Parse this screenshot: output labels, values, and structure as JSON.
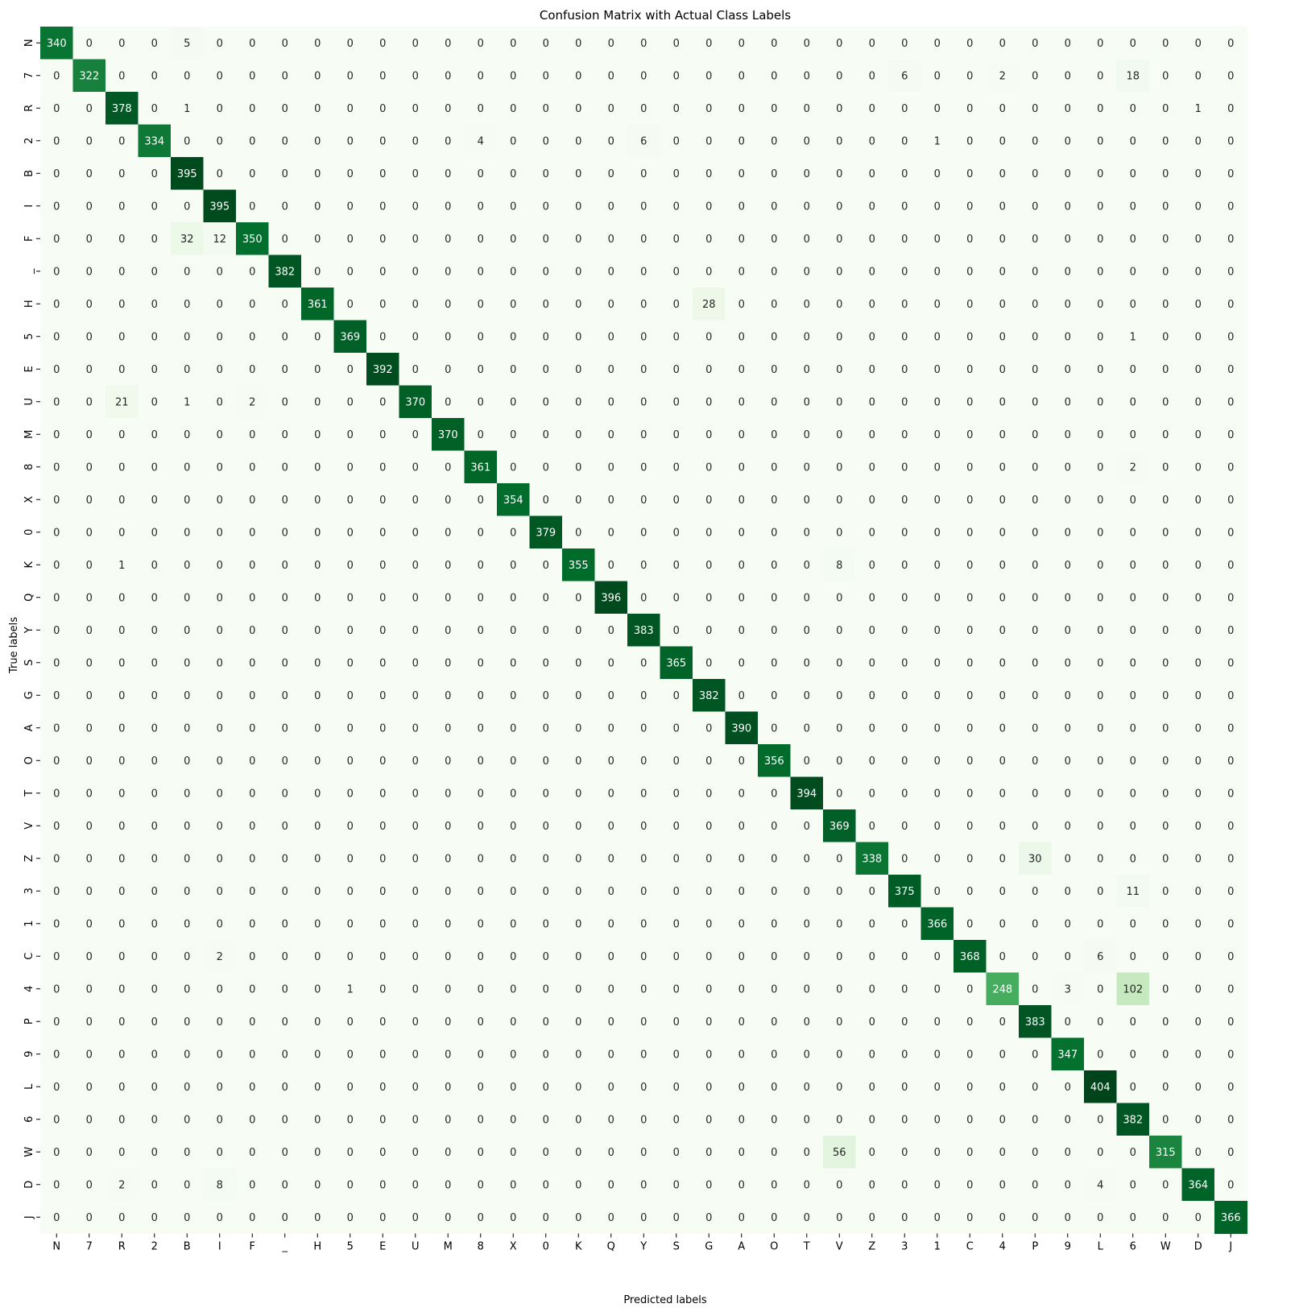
{
  "chart_data": {
    "type": "heatmap",
    "title": "Confusion Matrix with Actual Class Labels",
    "xlabel": "Predicted labels",
    "ylabel": "True labels",
    "x_categories": [
      "N",
      "7",
      "R",
      "2",
      "B",
      "I",
      "F",
      "_",
      "H",
      "5",
      "E",
      "U",
      "M",
      "8",
      "X",
      "0",
      "K",
      "Q",
      "Y",
      "S",
      "G",
      "A",
      "O",
      "T",
      "V",
      "Z",
      "3",
      "1",
      "C",
      "4",
      "P",
      "9",
      "L",
      "6",
      "W",
      "D",
      "J"
    ],
    "y_categories": [
      "N",
      "7",
      "R",
      "2",
      "B",
      "I",
      "F",
      "_",
      "H",
      "5",
      "E",
      "U",
      "M",
      "8",
      "X",
      "0",
      "K",
      "Q",
      "Y",
      "S",
      "G",
      "A",
      "O",
      "T",
      "V",
      "Z",
      "3",
      "1",
      "C",
      "4",
      "P",
      "9",
      "L",
      "6",
      "W",
      "D",
      "J"
    ],
    "colormap": "Greens",
    "color_low": "#f7fcf5",
    "color_high": "#00441b",
    "value_range": [
      0,
      404
    ],
    "colorbar": false,
    "annotated": true,
    "off_diagonal": [
      [
        0,
        4,
        5
      ],
      [
        1,
        26,
        6
      ],
      [
        1,
        29,
        2
      ],
      [
        1,
        33,
        18
      ],
      [
        2,
        4,
        1
      ],
      [
        2,
        35,
        1
      ],
      [
        3,
        13,
        4
      ],
      [
        3,
        18,
        6
      ],
      [
        3,
        27,
        1
      ],
      [
        6,
        4,
        32
      ],
      [
        6,
        5,
        12
      ],
      [
        8,
        20,
        28
      ],
      [
        9,
        33,
        1
      ],
      [
        11,
        2,
        21
      ],
      [
        11,
        4,
        1
      ],
      [
        11,
        6,
        2
      ],
      [
        13,
        33,
        2
      ],
      [
        16,
        2,
        1
      ],
      [
        16,
        24,
        8
      ],
      [
        25,
        30,
        30
      ],
      [
        26,
        33,
        11
      ],
      [
        28,
        5,
        2
      ],
      [
        28,
        32,
        6
      ],
      [
        29,
        9,
        1
      ],
      [
        29,
        31,
        3
      ],
      [
        29,
        33,
        102
      ],
      [
        34,
        24,
        56
      ],
      [
        35,
        2,
        2
      ],
      [
        35,
        5,
        8
      ],
      [
        35,
        32,
        4
      ]
    ],
    "diagonal": [
      340,
      322,
      378,
      334,
      395,
      395,
      350,
      382,
      361,
      369,
      392,
      370,
      370,
      361,
      354,
      379,
      355,
      396,
      383,
      365,
      382,
      390,
      356,
      394,
      369,
      338,
      375,
      366,
      368,
      248,
      383,
      347,
      404,
      382,
      315,
      364,
      366
    ]
  }
}
